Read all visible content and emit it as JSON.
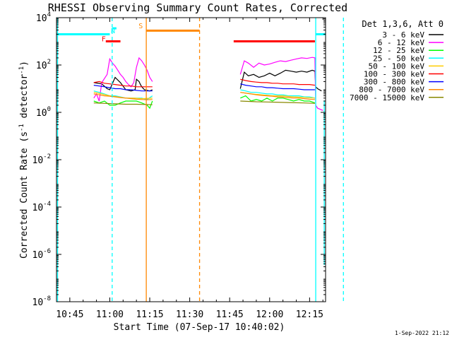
{
  "chart_data": {
    "type": "line",
    "title": "RHESSI Observing Summary Count Rates, Corrected",
    "xlabel": "Start Time (07-Sep-17 10:40:02)",
    "ylabel_main": "Corrected Count Rate (s",
    "ylabel_sup1": "-1",
    "ylabel_mid": " detector",
    "ylabel_sup2": "-1",
    "ylabel_end": ")",
    "x_ticks": [
      "10:45",
      "11:00",
      "11:15",
      "11:30",
      "11:45",
      "12:00",
      "12:15"
    ],
    "x_tick_minutes": [
      5,
      20,
      35,
      50,
      65,
      80,
      95
    ],
    "x_range_minutes": [
      0,
      101
    ],
    "y_scale": "log",
    "y_range_exponent": [
      -8,
      4
    ],
    "y_ticks": [
      {
        "exp": 4,
        "base": "10",
        "sup": "4"
      },
      {
        "exp": 2,
        "base": "10",
        "sup": "2"
      },
      {
        "exp": 0,
        "base": "10",
        "sup": "0"
      },
      {
        "exp": -2,
        "base": "10",
        "sup": "-2"
      },
      {
        "exp": -4,
        "base": "10",
        "sup": "-4"
      },
      {
        "exp": -6,
        "base": "10",
        "sup": "-6"
      },
      {
        "exp": -8,
        "base": "10",
        "sup": "-8"
      }
    ],
    "legend_header": "Det 1,3,6, Att 0",
    "legend_placement": "right",
    "series": [
      {
        "name": "3 - 6 keV",
        "color": "#000000",
        "points": [
          [
            14,
            18
          ],
          [
            17,
            16
          ],
          [
            19,
            10
          ],
          [
            20,
            9
          ],
          [
            22,
            30
          ],
          [
            24,
            18
          ],
          [
            26,
            9
          ],
          [
            28,
            8
          ],
          [
            29.5,
            9
          ],
          [
            30,
            25
          ],
          [
            31,
            20
          ],
          [
            31.5,
            15
          ],
          [
            32,
            12
          ],
          [
            33,
            9
          ],
          [
            35,
            8
          ],
          [
            36,
            9
          ],
          [
            null,
            null
          ],
          [
            69,
            10
          ],
          [
            70.5,
            50
          ],
          [
            72,
            35
          ],
          [
            74,
            40
          ],
          [
            76,
            30
          ],
          [
            78,
            35
          ],
          [
            80,
            45
          ],
          [
            82,
            35
          ],
          [
            84,
            45
          ],
          [
            86,
            60
          ],
          [
            88,
            55
          ],
          [
            90,
            50
          ],
          [
            92,
            55
          ],
          [
            94,
            50
          ],
          [
            96,
            60
          ],
          [
            97,
            55
          ],
          [
            97.3,
            12
          ],
          [
            98,
            10
          ],
          [
            99.5,
            8
          ]
        ]
      },
      {
        "name": "6 - 12 keV",
        "color": "#ff00ff",
        "points": [
          [
            14,
            4
          ],
          [
            15,
            6
          ],
          [
            16,
            3
          ],
          [
            17,
            18
          ],
          [
            19,
            40
          ],
          [
            20,
            180
          ],
          [
            21,
            120
          ],
          [
            22,
            90
          ],
          [
            23,
            60
          ],
          [
            24,
            40
          ],
          [
            25,
            30
          ],
          [
            26,
            20
          ],
          [
            27,
            15
          ],
          [
            28,
            12
          ],
          [
            29,
            18
          ],
          [
            30,
            80
          ],
          [
            31,
            200
          ],
          [
            32,
            150
          ],
          [
            33,
            100
          ],
          [
            34,
            60
          ],
          [
            35,
            30
          ],
          [
            36,
            20
          ],
          [
            null,
            null
          ],
          [
            69,
            40
          ],
          [
            70.5,
            150
          ],
          [
            72,
            120
          ],
          [
            74,
            80
          ],
          [
            76,
            120
          ],
          [
            78,
            100
          ],
          [
            80,
            110
          ],
          [
            82,
            130
          ],
          [
            84,
            150
          ],
          [
            86,
            140
          ],
          [
            88,
            160
          ],
          [
            90,
            180
          ],
          [
            92,
            200
          ],
          [
            94,
            190
          ],
          [
            96,
            210
          ],
          [
            97,
            200
          ],
          [
            97.3,
            2
          ],
          [
            98,
            1.5
          ],
          [
            100,
            1.2
          ]
        ]
      },
      {
        "name": "12 - 25 keV",
        "color": "#00ff00",
        "points": [
          [
            14,
            3
          ],
          [
            16,
            2.5
          ],
          [
            18,
            3
          ],
          [
            20,
            2
          ],
          [
            22,
            2
          ],
          [
            24,
            2.5
          ],
          [
            26,
            3
          ],
          [
            28,
            3
          ],
          [
            30,
            3
          ],
          [
            32,
            2.5
          ],
          [
            34,
            2
          ],
          [
            35,
            1.5
          ],
          [
            36,
            3
          ],
          [
            null,
            null
          ],
          [
            69,
            4
          ],
          [
            71,
            5
          ],
          [
            73,
            3
          ],
          [
            75,
            3.5
          ],
          [
            77,
            3
          ],
          [
            79,
            4
          ],
          [
            81,
            3
          ],
          [
            83,
            4
          ],
          [
            85,
            4
          ],
          [
            87,
            3.5
          ],
          [
            89,
            3
          ],
          [
            91,
            3.5
          ],
          [
            93,
            3
          ],
          [
            95,
            3
          ],
          [
            97,
            2.5
          ]
        ]
      },
      {
        "name": "25 - 50 keV",
        "color": "#00ffff",
        "points": [
          [
            14,
            8
          ],
          [
            16,
            7
          ],
          [
            18,
            6
          ],
          [
            20,
            5
          ],
          [
            22,
            5
          ],
          [
            24,
            4.5
          ],
          [
            26,
            4
          ],
          [
            28,
            4
          ],
          [
            30,
            4
          ],
          [
            32,
            4
          ],
          [
            34,
            3.5
          ],
          [
            36,
            5
          ],
          [
            null,
            null
          ],
          [
            69,
            9
          ],
          [
            71,
            8
          ],
          [
            73,
            7
          ],
          [
            75,
            7
          ],
          [
            77,
            6.5
          ],
          [
            79,
            6
          ],
          [
            81,
            6
          ],
          [
            83,
            5.5
          ],
          [
            85,
            5.5
          ],
          [
            87,
            5
          ],
          [
            89,
            5
          ],
          [
            91,
            5
          ],
          [
            93,
            4.5
          ],
          [
            95,
            4.5
          ],
          [
            97,
            4
          ]
        ]
      },
      {
        "name": "50 - 100 keV",
        "color": "#ffcc00",
        "points": [
          [
            14,
            7
          ],
          [
            17,
            6
          ],
          [
            20,
            5
          ],
          [
            23,
            4.5
          ],
          [
            26,
            4
          ],
          [
            29,
            4
          ],
          [
            32,
            3.8
          ],
          [
            36,
            4
          ],
          [
            null,
            null
          ],
          [
            69,
            7
          ],
          [
            73,
            6
          ],
          [
            77,
            5.5
          ],
          [
            81,
            5
          ],
          [
            85,
            5
          ],
          [
            89,
            4.5
          ],
          [
            93,
            4.3
          ],
          [
            97,
            4
          ]
        ]
      },
      {
        "name": "100 - 300 keV",
        "color": "#ff0000",
        "points": [
          [
            14,
            18
          ],
          [
            16,
            20
          ],
          [
            18,
            17
          ],
          [
            20,
            16
          ],
          [
            22,
            15
          ],
          [
            24,
            14
          ],
          [
            26,
            13
          ],
          [
            28,
            13
          ],
          [
            30,
            12
          ],
          [
            32,
            12
          ],
          [
            34,
            12
          ],
          [
            36,
            12
          ],
          [
            null,
            null
          ],
          [
            69,
            25
          ],
          [
            71,
            22
          ],
          [
            73,
            20
          ],
          [
            75,
            19
          ],
          [
            77,
            18
          ],
          [
            79,
            18
          ],
          [
            81,
            17
          ],
          [
            83,
            17
          ],
          [
            85,
            16
          ],
          [
            87,
            16
          ],
          [
            89,
            16
          ],
          [
            91,
            15
          ],
          [
            93,
            15
          ],
          [
            95,
            15
          ],
          [
            97,
            14
          ]
        ]
      },
      {
        "name": "300 - 800 keV",
        "color": "#0000ff",
        "points": [
          [
            14,
            14
          ],
          [
            16,
            13
          ],
          [
            18,
            12
          ],
          [
            20,
            11
          ],
          [
            22,
            10
          ],
          [
            24,
            10
          ],
          [
            26,
            9
          ],
          [
            28,
            9
          ],
          [
            30,
            8.5
          ],
          [
            32,
            8
          ],
          [
            34,
            8
          ],
          [
            36,
            8
          ],
          [
            null,
            null
          ],
          [
            69,
            16
          ],
          [
            71,
            14
          ],
          [
            73,
            13
          ],
          [
            75,
            12
          ],
          [
            77,
            12
          ],
          [
            79,
            11
          ],
          [
            81,
            11
          ],
          [
            83,
            10.5
          ],
          [
            85,
            10
          ],
          [
            87,
            10
          ],
          [
            89,
            10
          ],
          [
            91,
            9.5
          ],
          [
            93,
            9
          ],
          [
            95,
            9
          ],
          [
            97,
            9
          ]
        ]
      },
      {
        "name": "800 - 7000 keV",
        "color": "#ff8800",
        "points": [
          [
            14,
            6
          ],
          [
            16,
            5.5
          ],
          [
            18,
            5
          ],
          [
            20,
            4.8
          ],
          [
            22,
            4.5
          ],
          [
            24,
            4.2
          ],
          [
            26,
            4
          ],
          [
            28,
            3.8
          ],
          [
            30,
            3.6
          ],
          [
            32,
            3.5
          ],
          [
            34,
            3.4
          ],
          [
            36,
            3.5
          ],
          [
            null,
            null
          ],
          [
            69,
            7
          ],
          [
            71,
            6.5
          ],
          [
            73,
            6
          ],
          [
            75,
            5.5
          ],
          [
            77,
            5.2
          ],
          [
            79,
            5
          ],
          [
            81,
            4.8
          ],
          [
            83,
            4.5
          ],
          [
            85,
            4.4
          ],
          [
            87,
            4.2
          ],
          [
            89,
            4
          ],
          [
            91,
            4
          ],
          [
            93,
            3.8
          ],
          [
            95,
            3.6
          ],
          [
            97,
            3.5
          ]
        ]
      },
      {
        "name": "7000 - 15000 keV",
        "color": "#888800",
        "points": [
          [
            14,
            2.5
          ],
          [
            18,
            2.4
          ],
          [
            22,
            2.3
          ],
          [
            26,
            2.2
          ],
          [
            30,
            2.2
          ],
          [
            36,
            2.1
          ],
          [
            null,
            null
          ],
          [
            69,
            3
          ],
          [
            75,
            2.8
          ],
          [
            81,
            2.7
          ],
          [
            87,
            2.6
          ],
          [
            93,
            2.5
          ],
          [
            97,
            2.4
          ]
        ]
      }
    ],
    "annotations": {
      "labels": [
        {
          "text": "F",
          "color": "#ff0000",
          "minute": 17.7,
          "exp": 3.0
        },
        {
          "text": "N",
          "color": "#00ffff",
          "minute": 21.2,
          "exp": 3.35
        },
        {
          "text": "S",
          "color": "#ff8800",
          "minute": 31.6,
          "exp": 3.55
        }
      ],
      "bars": [
        {
          "color": "#00ffff",
          "from": 0,
          "to": 20,
          "exp": 3.3
        },
        {
          "color": "#00ffff",
          "from": 21,
          "to": 22.5,
          "exp": 3.55
        },
        {
          "color": "#00ffff",
          "from": 97.3,
          "to": 110,
          "exp": 3.3
        },
        {
          "color": "#ff0000",
          "from": 18.5,
          "to": 24,
          "exp": 3.0
        },
        {
          "color": "#ff0000",
          "from": 66.5,
          "to": 97,
          "exp": 3.0
        },
        {
          "color": "#ff8800",
          "from": 33.7,
          "to": 53.7,
          "exp": 3.45
        }
      ],
      "vlines": [
        {
          "color": "#00ffff",
          "minute": 0.4,
          "dashed": false
        },
        {
          "color": "#00ffff",
          "minute": 20.9,
          "dashed": true
        },
        {
          "color": "#ff8800",
          "minute": 33.7,
          "dashed": false
        },
        {
          "color": "#ff8800",
          "minute": 53.7,
          "dashed": true
        },
        {
          "color": "#00ffff",
          "minute": 97.3,
          "dashed": false
        },
        {
          "color": "#00ffff",
          "minute": 107.7,
          "dashed": true
        }
      ],
      "drop_line": {
        "color": "#00ffff",
        "minute": 100.5,
        "from_exp": 0.5,
        "to_exp": -6.45
      }
    },
    "grid": false
  },
  "footer_date": "1-Sep-2022 21:12"
}
